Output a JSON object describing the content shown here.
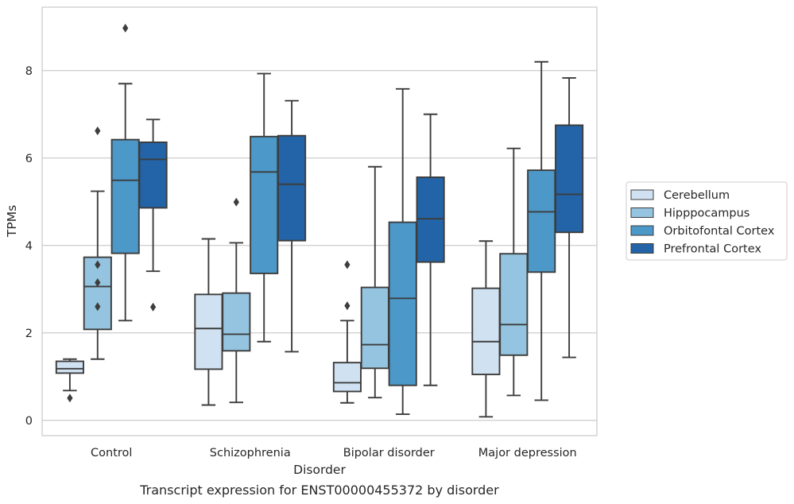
{
  "chart_data": {
    "type": "box",
    "title": "",
    "caption": "Transcript expression for ENST00000455372 by disorder",
    "xlabel": "Disorder",
    "ylabel": "TPMs",
    "ylim": [
      -0.35,
      9.45
    ],
    "yticks": [
      "0",
      "2",
      "4",
      "6",
      "8"
    ],
    "grid": "horizontal",
    "legend_position": "right",
    "categories": [
      "Control",
      "Schizophrenia",
      "Bipolar disorder",
      "Major depression"
    ],
    "series": [
      {
        "name": "Cerebellum",
        "color": "#d0e1f2",
        "boxes": [
          {
            "whislo": 0.68,
            "q1": 1.08,
            "med": 1.18,
            "q3": 1.35,
            "whishi": 1.4,
            "fliers": [
              0.51
            ]
          },
          {
            "whislo": 0.35,
            "q1": 1.17,
            "med": 2.1,
            "q3": 2.88,
            "whishi": 4.15,
            "fliers": []
          },
          {
            "whislo": 0.4,
            "q1": 0.66,
            "med": 0.86,
            "q3": 1.32,
            "whishi": 2.28,
            "fliers": [
              2.62,
              3.56
            ]
          },
          {
            "whislo": 0.08,
            "q1": 1.05,
            "med": 1.8,
            "q3": 3.02,
            "whishi": 4.1,
            "fliers": []
          }
        ]
      },
      {
        "name": "Hipppocampus",
        "color": "#94c4df",
        "boxes": [
          {
            "whislo": 1.4,
            "q1": 2.08,
            "med": 3.06,
            "q3": 3.73,
            "whishi": 5.24,
            "fliers": [
              2.6,
              3.15,
              3.56,
              6.62
            ]
          },
          {
            "whislo": 0.41,
            "q1": 1.59,
            "med": 1.97,
            "q3": 2.91,
            "whishi": 4.06,
            "fliers": [
              4.99
            ]
          },
          {
            "whislo": 0.52,
            "q1": 1.19,
            "med": 1.73,
            "q3": 3.04,
            "whishi": 5.8,
            "fliers": []
          },
          {
            "whislo": 0.57,
            "q1": 1.49,
            "med": 2.19,
            "q3": 3.81,
            "whishi": 6.22,
            "fliers": []
          }
        ]
      },
      {
        "name": "Orbitofontal Cortex",
        "color": "#4b98c9",
        "boxes": [
          {
            "whislo": 2.28,
            "q1": 3.82,
            "med": 5.49,
            "q3": 6.42,
            "whishi": 7.7,
            "fliers": [
              8.97
            ]
          },
          {
            "whislo": 1.8,
            "q1": 3.36,
            "med": 5.68,
            "q3": 6.49,
            "whishi": 7.93,
            "fliers": []
          },
          {
            "whislo": 0.14,
            "q1": 0.8,
            "med": 2.79,
            "q3": 4.53,
            "whishi": 7.58,
            "fliers": []
          },
          {
            "whislo": 0.46,
            "q1": 3.39,
            "med": 4.77,
            "q3": 5.72,
            "whishi": 8.2,
            "fliers": []
          }
        ]
      },
      {
        "name": "Prefrontal Cortex",
        "color": "#2264a7",
        "boxes": [
          {
            "whislo": 3.41,
            "q1": 4.86,
            "med": 5.97,
            "q3": 6.36,
            "whishi": 6.88,
            "fliers": [
              2.59
            ]
          },
          {
            "whislo": 1.57,
            "q1": 4.11,
            "med": 5.4,
            "q3": 6.51,
            "whishi": 7.31,
            "fliers": []
          },
          {
            "whislo": 0.8,
            "q1": 3.62,
            "med": 4.61,
            "q3": 5.56,
            "whishi": 7.0,
            "fliers": []
          },
          {
            "whislo": 1.44,
            "q1": 4.3,
            "med": 5.17,
            "q3": 6.75,
            "whishi": 7.83,
            "fliers": []
          }
        ]
      }
    ]
  }
}
